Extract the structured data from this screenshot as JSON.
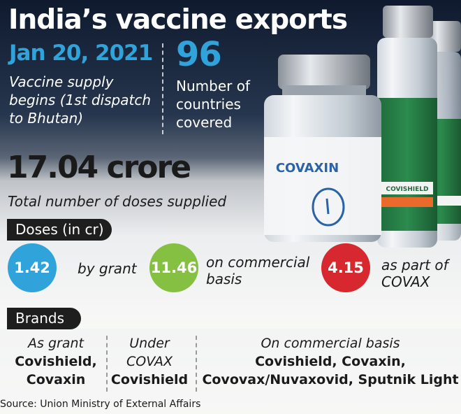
{
  "title": "India’s vaccine exports",
  "milestone": {
    "date": "Jan 20, 2021",
    "description": "Vaccine supply begins (1st dispatch to Bhutan)"
  },
  "countries": {
    "value": "96",
    "description": "Number of countries covered"
  },
  "total": {
    "value": "17.04 crore",
    "description": "Total number of doses supplied"
  },
  "doses": {
    "header": "Doses (in cr)",
    "items": [
      {
        "value": "1.42",
        "label": "by grant",
        "color": "#2fa3da"
      },
      {
        "value": "11.46",
        "label": "on commercial basis",
        "color": "#86c043"
      },
      {
        "value": "4.15",
        "label": "as part of COVAX",
        "color": "#d7282f"
      }
    ]
  },
  "brands": {
    "header": "Brands",
    "columns": [
      {
        "heading": "As grant",
        "names": "Covishield, Covaxin"
      },
      {
        "heading": "Under COVAX",
        "names": "Covishield"
      },
      {
        "heading": "On commercial basis",
        "names": "Covishield, Covaxin, Covovax/Nuvaxovid, Sputnik Light"
      }
    ]
  },
  "photo": {
    "covaxin_label": "COVAXIN",
    "covishield_label": "COVISHIELD"
  },
  "source": "Source: Union Ministry of External Affairs"
}
